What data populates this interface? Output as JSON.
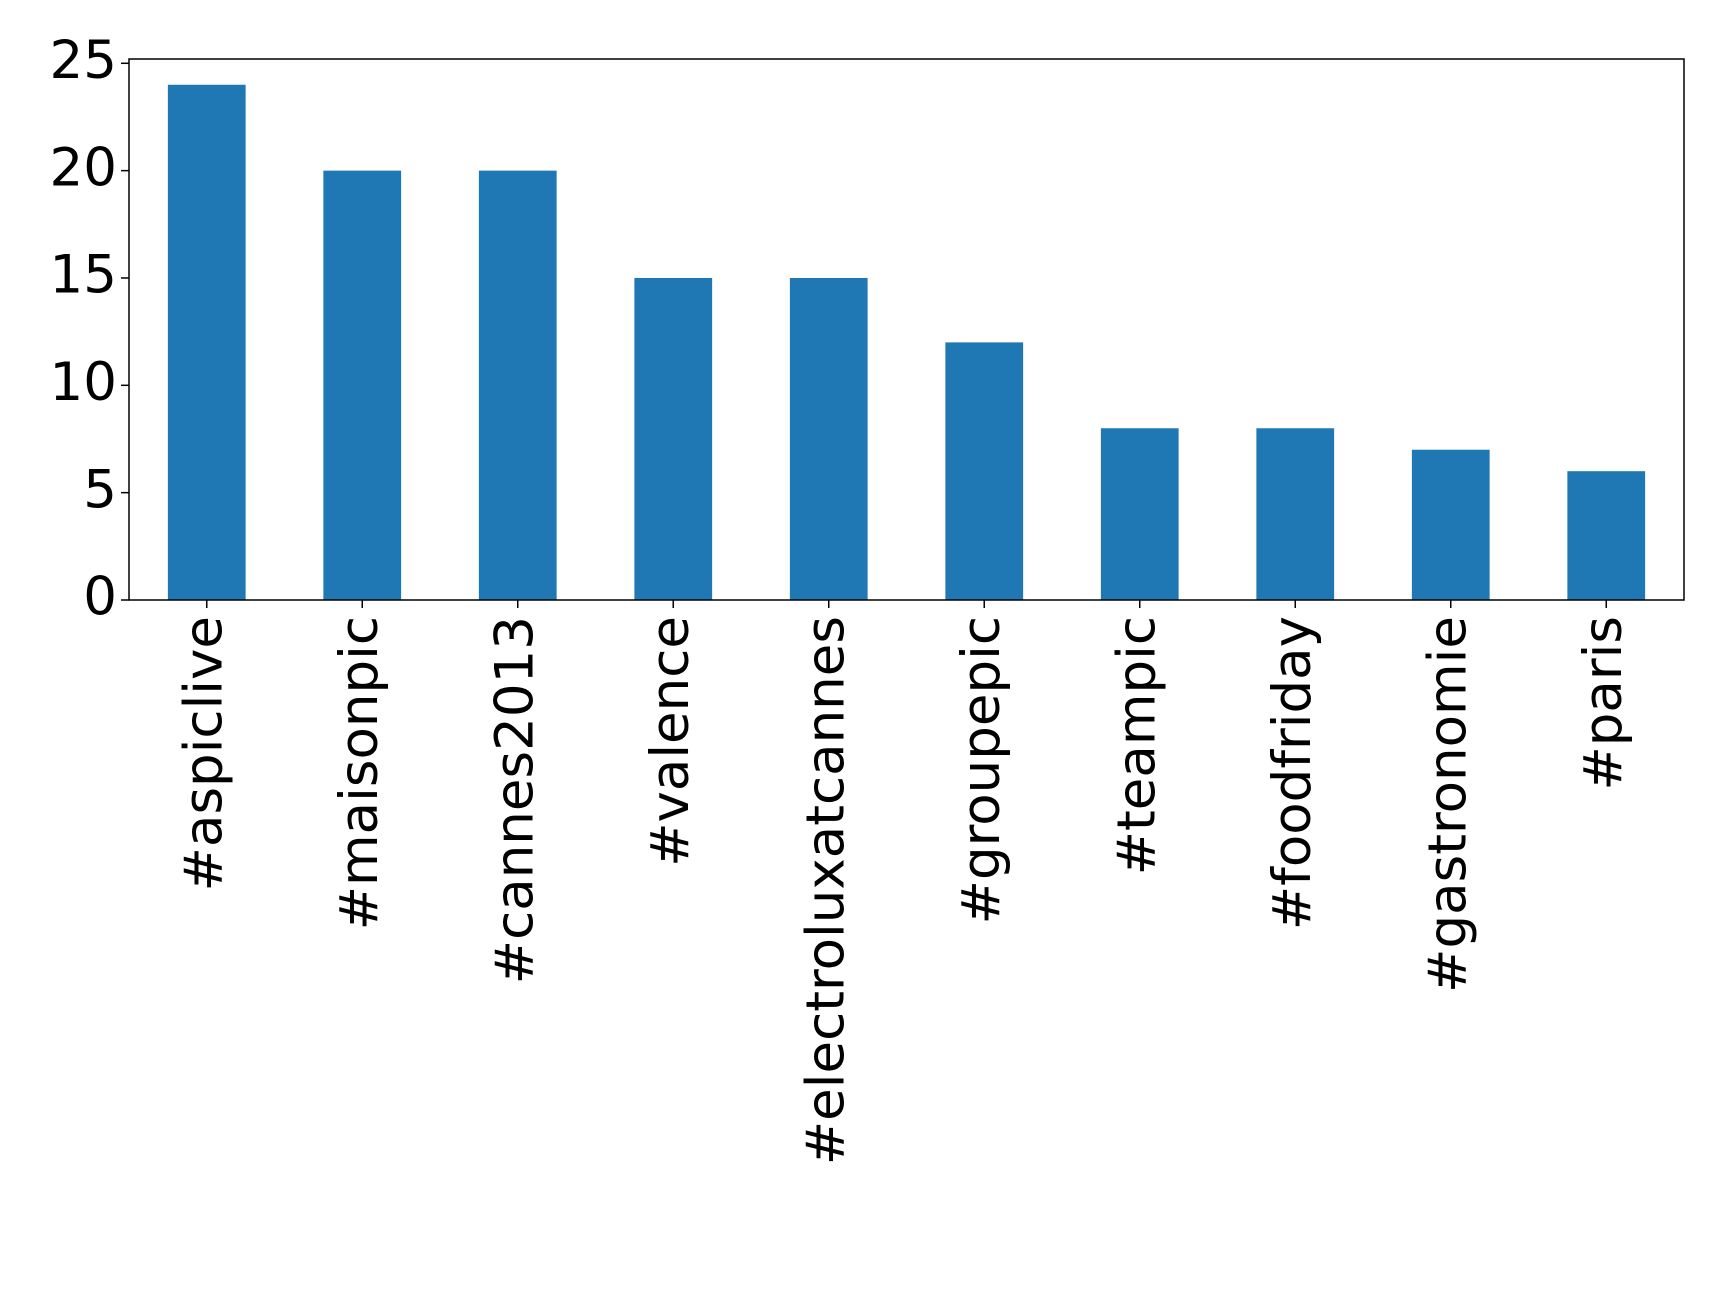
{
  "chart_data": {
    "type": "bar",
    "categories": [
      "#aspiclive",
      "#maisonpic",
      "#cannes2013",
      "#valence",
      "#electroluxatcannes",
      "#groupepic",
      "#teampic",
      "#foodfriday",
      "#gastronomie",
      "#paris"
    ],
    "values": [
      24,
      20,
      20,
      15,
      15,
      12,
      8,
      8,
      7,
      6
    ],
    "color": "#1f77b4",
    "ylim": [
      0,
      25.2
    ],
    "yticks": [
      0,
      5,
      10,
      15,
      20,
      25
    ],
    "grid": false
  }
}
